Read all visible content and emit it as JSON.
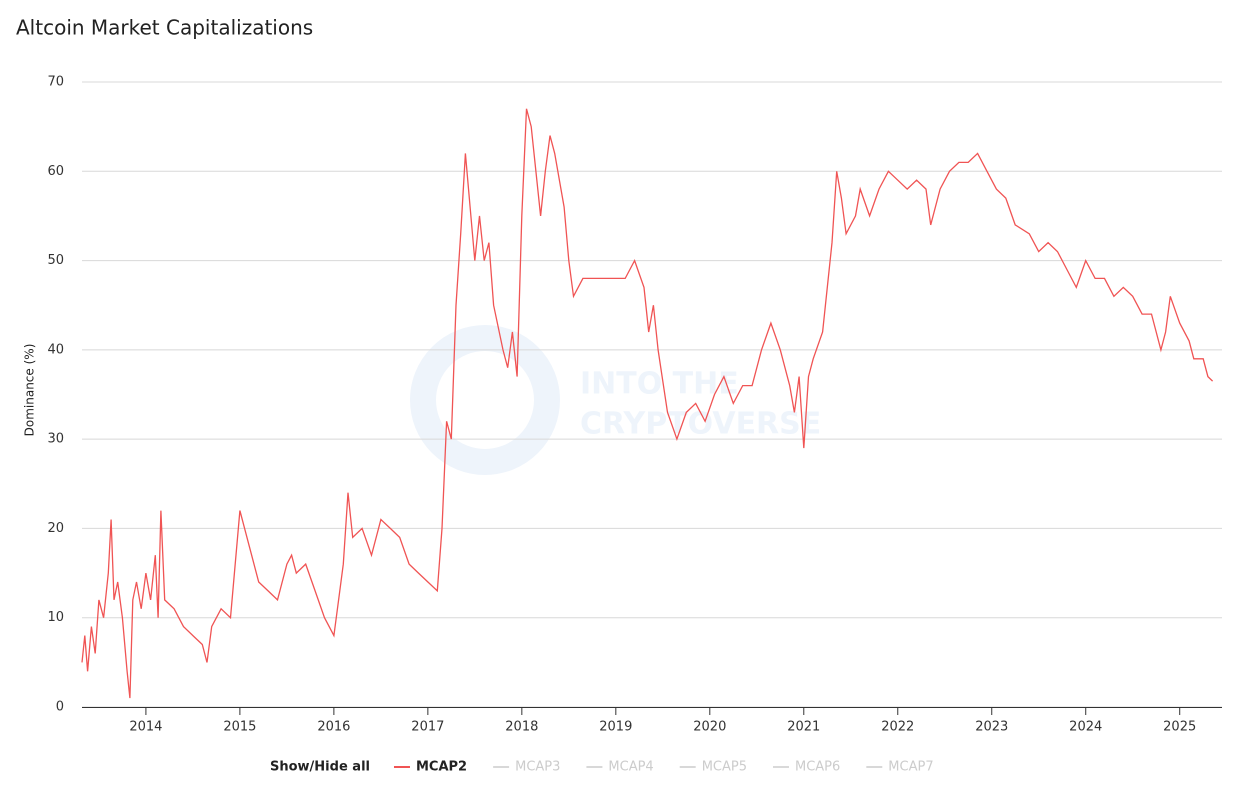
{
  "chart_data": {
    "type": "line",
    "title": "Altcoin Market Capitalizations",
    "y_label": "Dominance (%)",
    "watermark": [
      "INTO THE",
      "CRYPTOVERSE"
    ],
    "xlim": [
      2013.32,
      2025.45
    ],
    "xticks": [
      2014,
      2015,
      2016,
      2017,
      2018,
      2019,
      2020,
      2021,
      2022,
      2023,
      2024,
      2025
    ],
    "ylim": [
      0,
      70
    ],
    "yticks": [
      0,
      10,
      20,
      30,
      40,
      50,
      60,
      70
    ],
    "grid": true,
    "legend": {
      "toggle": "Show/Hide all",
      "hidden": [
        "MCAP3",
        "MCAP4",
        "MCAP5",
        "MCAP6",
        "MCAP7"
      ],
      "hidden_color": "#cccccc"
    },
    "x": [
      2013.32,
      2013.35,
      2013.38,
      2013.42,
      2013.46,
      2013.5,
      2013.55,
      2013.6,
      2013.63,
      2013.66,
      2013.7,
      2013.75,
      2013.8,
      2013.83,
      2013.86,
      2013.9,
      2013.95,
      2014.0,
      2014.05,
      2014.1,
      2014.13,
      2014.16,
      2014.2,
      2014.3,
      2014.4,
      2014.5,
      2014.6,
      2014.65,
      2014.7,
      2014.8,
      2014.9,
      2015.0,
      2015.05,
      2015.1,
      2015.2,
      2015.3,
      2015.4,
      2015.5,
      2015.55,
      2015.6,
      2015.7,
      2015.8,
      2015.9,
      2016.0,
      2016.05,
      2016.1,
      2016.15,
      2016.2,
      2016.3,
      2016.4,
      2016.5,
      2016.6,
      2016.7,
      2016.8,
      2016.9,
      2017.0,
      2017.1,
      2017.15,
      2017.2,
      2017.25,
      2017.3,
      2017.35,
      2017.4,
      2017.45,
      2017.5,
      2017.55,
      2017.6,
      2017.65,
      2017.7,
      2017.8,
      2017.85,
      2017.9,
      2017.95,
      2018.0,
      2018.05,
      2018.1,
      2018.15,
      2018.2,
      2018.25,
      2018.3,
      2018.35,
      2018.45,
      2018.5,
      2018.55,
      2018.65,
      2018.8,
      2018.95,
      2019.1,
      2019.2,
      2019.3,
      2019.35,
      2019.4,
      2019.45,
      2019.55,
      2019.65,
      2019.75,
      2019.85,
      2019.95,
      2020.05,
      2020.15,
      2020.25,
      2020.35,
      2020.45,
      2020.55,
      2020.65,
      2020.75,
      2020.85,
      2020.9,
      2020.95,
      2021.0,
      2021.05,
      2021.1,
      2021.2,
      2021.3,
      2021.35,
      2021.4,
      2021.45,
      2021.55,
      2021.6,
      2021.7,
      2021.8,
      2021.9,
      2022.0,
      2022.1,
      2022.2,
      2022.3,
      2022.35,
      2022.45,
      2022.55,
      2022.65,
      2022.75,
      2022.85,
      2022.95,
      2023.05,
      2023.15,
      2023.25,
      2023.4,
      2023.5,
      2023.6,
      2023.7,
      2023.8,
      2023.9,
      2024.0,
      2024.1,
      2024.2,
      2024.3,
      2024.4,
      2024.5,
      2024.6,
      2024.7,
      2024.8,
      2024.85,
      2024.9,
      2025.0,
      2025.1,
      2025.15,
      2025.25,
      2025.3,
      2025.35
    ],
    "series": [
      {
        "name": "MCAP2",
        "color": "#f05454",
        "values": [
          5,
          8,
          4,
          9,
          6,
          12,
          10,
          15,
          21,
          12,
          14,
          10,
          4,
          1,
          12,
          14,
          11,
          15,
          12,
          17,
          10,
          22,
          12,
          11,
          9,
          8,
          7,
          5,
          9,
          11,
          10,
          22,
          20,
          18,
          14,
          13,
          12,
          16,
          17,
          15,
          16,
          13,
          10,
          8,
          12,
          16,
          24,
          19,
          20,
          17,
          21,
          20,
          19,
          16,
          15,
          14,
          13,
          20,
          32,
          30,
          45,
          53,
          62,
          56,
          50,
          55,
          50,
          52,
          45,
          40,
          38,
          42,
          37,
          55,
          67,
          65,
          60,
          55,
          60,
          64,
          62,
          56,
          50,
          46,
          48,
          48,
          48,
          48,
          50,
          47,
          42,
          45,
          40,
          33,
          30,
          33,
          34,
          32,
          35,
          37,
          34,
          36,
          36,
          40,
          43,
          40,
          36,
          33,
          37,
          29,
          37,
          39,
          42,
          52,
          60,
          57,
          53,
          55,
          58,
          55,
          58,
          60,
          59,
          58,
          59,
          58,
          54,
          58,
          60,
          61,
          61,
          62,
          60,
          58,
          57,
          54,
          53,
          51,
          52,
          51,
          49,
          47,
          50,
          48,
          48,
          46,
          47,
          46,
          44,
          44,
          40,
          42,
          46,
          43,
          41,
          39,
          39,
          37,
          36.5
        ]
      }
    ]
  }
}
